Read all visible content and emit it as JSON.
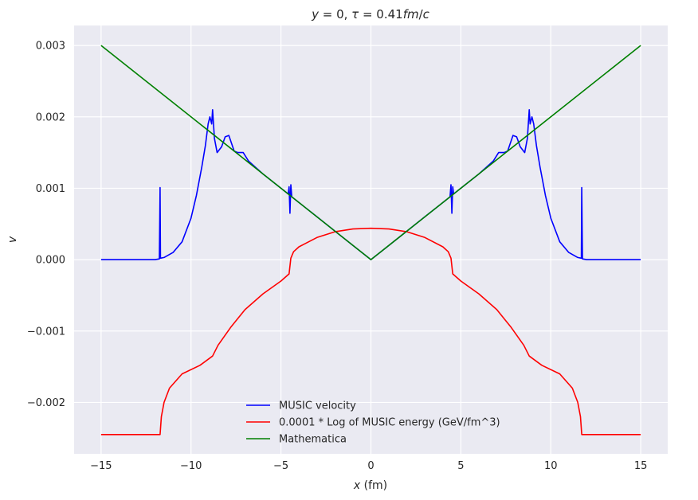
{
  "chart_data": {
    "type": "line",
    "title": "y = 0, τ = 0.41fm/c",
    "xlabel": "x (fm)",
    "ylabel": "v",
    "xlim": [
      -16.5,
      16.5
    ],
    "ylim": [
      -0.00272,
      0.00328
    ],
    "xticks": [
      -15,
      -10,
      -5,
      0,
      5,
      10,
      15
    ],
    "xtick_labels": [
      "−15",
      "−10",
      "−5",
      "0",
      "5",
      "10",
      "15"
    ],
    "yticks": [
      -0.002,
      -0.001,
      0.0,
      0.001,
      0.002,
      0.003
    ],
    "ytick_labels": [
      "−0.002",
      "−0.001",
      "0.000",
      "0.001",
      "0.002",
      "0.003"
    ],
    "grid": true,
    "background": "#eaeaf2",
    "legend_position": "lower-center",
    "symmetric_about_zero": true,
    "series": [
      {
        "name": "MUSIC velocity",
        "color": "#0000ff",
        "points_right_half": [
          [
            0,
            0
          ],
          [
            1,
            0.0002
          ],
          [
            2,
            0.0004
          ],
          [
            3,
            0.0006
          ],
          [
            4,
            0.0008
          ],
          [
            4.4,
            0.00088
          ],
          [
            4.45,
            0.00105
          ],
          [
            4.5,
            0.00065
          ],
          [
            4.55,
            0.00102
          ],
          [
            4.6,
            0.00092
          ],
          [
            5,
            0.001
          ],
          [
            6,
            0.0012
          ],
          [
            6.8,
            0.00138
          ],
          [
            7.1,
            0.0015
          ],
          [
            7.4,
            0.0015
          ],
          [
            7.6,
            0.00152
          ],
          [
            7.9,
            0.00174
          ],
          [
            8.1,
            0.00172
          ],
          [
            8.3,
            0.00158
          ],
          [
            8.55,
            0.0015
          ],
          [
            8.7,
            0.0017
          ],
          [
            8.8,
            0.0021
          ],
          [
            8.85,
            0.0019
          ],
          [
            8.95,
            0.002
          ],
          [
            9.05,
            0.0019
          ],
          [
            9.2,
            0.0016
          ],
          [
            9.4,
            0.0013
          ],
          [
            9.7,
            0.0009
          ],
          [
            10,
            0.00058
          ],
          [
            10.5,
            0.00025
          ],
          [
            11,
            0.0001
          ],
          [
            11.5,
            3e-05
          ],
          [
            11.7,
            2e-05
          ],
          [
            11.72,
            0.00101
          ],
          [
            11.76,
            1e-05
          ],
          [
            12,
            0
          ],
          [
            13,
            0
          ],
          [
            14,
            0
          ],
          [
            15,
            0
          ]
        ]
      },
      {
        "name": "0.0001 * Log of MUSIC energy (GeV/fm^3)",
        "color": "#ff0000",
        "points_right_half": [
          [
            0,
            0.00044
          ],
          [
            1,
            0.00043
          ],
          [
            2,
            0.00039
          ],
          [
            3,
            0.00031
          ],
          [
            4,
            0.00018
          ],
          [
            4.3,
            0.00011
          ],
          [
            4.45,
            2e-05
          ],
          [
            4.55,
            -0.0002
          ],
          [
            5,
            -0.0003
          ],
          [
            6,
            -0.00048
          ],
          [
            7,
            -0.0007
          ],
          [
            7.8,
            -0.00095
          ],
          [
            8.5,
            -0.0012
          ],
          [
            8.8,
            -0.00135
          ],
          [
            9.5,
            -0.00148
          ],
          [
            10.5,
            -0.0016
          ],
          [
            11.2,
            -0.0018
          ],
          [
            11.5,
            -0.002
          ],
          [
            11.65,
            -0.0022
          ],
          [
            11.72,
            -0.00245
          ],
          [
            12,
            -0.00245
          ],
          [
            13,
            -0.00245
          ],
          [
            14,
            -0.00245
          ],
          [
            15,
            -0.00245
          ]
        ]
      },
      {
        "name": "Mathematica",
        "color": "#008000",
        "points_right_half": [
          [
            0,
            0
          ],
          [
            15,
            0.003
          ]
        ]
      }
    ]
  }
}
